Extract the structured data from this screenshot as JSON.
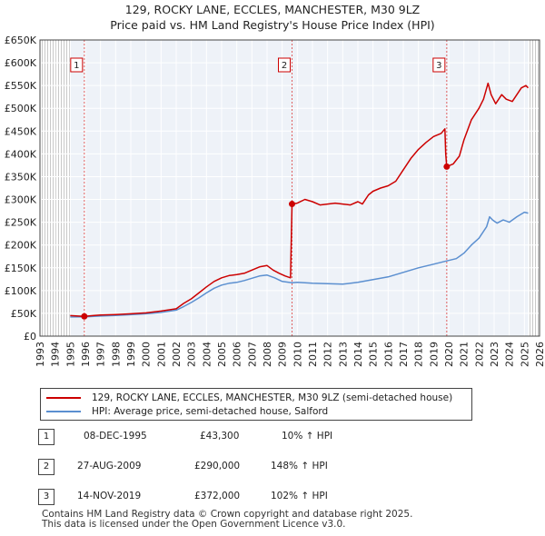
{
  "title_line1": "129, ROCKY LANE, ECCLES, MANCHESTER, M30 9LZ",
  "title_line2": "Price paid vs. HM Land Registry's House Price Index (HPI)",
  "chart_data": {
    "type": "line",
    "title": "129, ROCKY LANE, ECCLES, MANCHESTER, M30 9LZ — Price paid vs. HM Land Registry's House Price Index (HPI)",
    "xlabel": "",
    "ylabel": "",
    "xlim": [
      1993,
      2026
    ],
    "ylim": [
      0,
      650000
    ],
    "x_ticks": [
      1993,
      1994,
      1995,
      1996,
      1997,
      1998,
      1999,
      2000,
      2001,
      2002,
      2003,
      2004,
      2005,
      2006,
      2007,
      2008,
      2009,
      2010,
      2011,
      2012,
      2013,
      2014,
      2015,
      2016,
      2017,
      2018,
      2019,
      2020,
      2021,
      2022,
      2023,
      2024,
      2025,
      2026
    ],
    "y_ticks": [
      0,
      50000,
      100000,
      150000,
      200000,
      250000,
      300000,
      350000,
      400000,
      450000,
      500000,
      550000,
      600000,
      650000
    ],
    "y_tick_labels": [
      "£0",
      "£50K",
      "£100K",
      "£150K",
      "£200K",
      "£250K",
      "£300K",
      "£350K",
      "£400K",
      "£450K",
      "£500K",
      "£550K",
      "£600K",
      "£650K"
    ],
    "data_start": 1995.0,
    "data_end": 2025.25,
    "grid": true,
    "series": [
      {
        "name": "129, ROCKY LANE, ECCLES, MANCHESTER, M30 9LZ (semi-detached house)",
        "color": "#cc0000",
        "points": [
          [
            1995.0,
            45000
          ],
          [
            1995.5,
            44000
          ],
          [
            1995.93,
            43300
          ],
          [
            1996.5,
            45000
          ],
          [
            1997.0,
            46500
          ],
          [
            1998.0,
            47500
          ],
          [
            1999.0,
            49000
          ],
          [
            2000.0,
            51000
          ],
          [
            2001.0,
            55000
          ],
          [
            2002.0,
            60000
          ],
          [
            2002.5,
            72000
          ],
          [
            2003.0,
            82000
          ],
          [
            2003.5,
            95000
          ],
          [
            2004.0,
            108000
          ],
          [
            2004.5,
            120000
          ],
          [
            2005.0,
            128000
          ],
          [
            2005.5,
            133000
          ],
          [
            2006.0,
            135000
          ],
          [
            2006.5,
            138000
          ],
          [
            2007.0,
            145000
          ],
          [
            2007.5,
            152000
          ],
          [
            2008.0,
            155000
          ],
          [
            2008.4,
            145000
          ],
          [
            2008.8,
            138000
          ],
          [
            2009.2,
            132000
          ],
          [
            2009.55,
            128000
          ],
          [
            2009.65,
            290000
          ],
          [
            2010.0,
            292000
          ],
          [
            2010.5,
            300000
          ],
          [
            2011.0,
            295000
          ],
          [
            2011.5,
            288000
          ],
          [
            2012.0,
            290000
          ],
          [
            2012.5,
            292000
          ],
          [
            2013.0,
            290000
          ],
          [
            2013.5,
            288000
          ],
          [
            2014.0,
            295000
          ],
          [
            2014.3,
            290000
          ],
          [
            2014.7,
            310000
          ],
          [
            2015.0,
            318000
          ],
          [
            2015.5,
            325000
          ],
          [
            2016.0,
            330000
          ],
          [
            2016.5,
            340000
          ],
          [
            2017.0,
            365000
          ],
          [
            2017.5,
            390000
          ],
          [
            2018.0,
            410000
          ],
          [
            2018.5,
            425000
          ],
          [
            2019.0,
            438000
          ],
          [
            2019.5,
            445000
          ],
          [
            2019.75,
            455000
          ],
          [
            2019.8,
            400000
          ],
          [
            2019.87,
            372000
          ],
          [
            2020.3,
            378000
          ],
          [
            2020.7,
            395000
          ],
          [
            2021.0,
            430000
          ],
          [
            2021.5,
            475000
          ],
          [
            2022.0,
            500000
          ],
          [
            2022.3,
            520000
          ],
          [
            2022.6,
            555000
          ],
          [
            2022.8,
            530000
          ],
          [
            2023.1,
            510000
          ],
          [
            2023.5,
            530000
          ],
          [
            2023.8,
            520000
          ],
          [
            2024.2,
            515000
          ],
          [
            2024.5,
            530000
          ],
          [
            2024.8,
            545000
          ],
          [
            2025.1,
            550000
          ],
          [
            2025.25,
            545000
          ]
        ]
      },
      {
        "name": "HPI: Average price, semi-detached house, Salford",
        "color": "#5b8fd0",
        "points": [
          [
            1995.0,
            42000
          ],
          [
            1996.0,
            42500
          ],
          [
            1997.0,
            44000
          ],
          [
            1998.0,
            45500
          ],
          [
            1999.0,
            47000
          ],
          [
            2000.0,
            49000
          ],
          [
            2001.0,
            52000
          ],
          [
            2002.0,
            57000
          ],
          [
            2002.5,
            65000
          ],
          [
            2003.0,
            74000
          ],
          [
            2003.5,
            84000
          ],
          [
            2004.0,
            95000
          ],
          [
            2004.5,
            105000
          ],
          [
            2005.0,
            112000
          ],
          [
            2005.5,
            116000
          ],
          [
            2006.0,
            118000
          ],
          [
            2006.5,
            122000
          ],
          [
            2007.0,
            127000
          ],
          [
            2007.5,
            132000
          ],
          [
            2008.0,
            134000
          ],
          [
            2008.5,
            128000
          ],
          [
            2009.0,
            120000
          ],
          [
            2009.65,
            117000
          ],
          [
            2010.0,
            118000
          ],
          [
            2011.0,
            116000
          ],
          [
            2012.0,
            115000
          ],
          [
            2013.0,
            114000
          ],
          [
            2014.0,
            118000
          ],
          [
            2015.0,
            124000
          ],
          [
            2016.0,
            130000
          ],
          [
            2017.0,
            140000
          ],
          [
            2018.0,
            150000
          ],
          [
            2019.0,
            158000
          ],
          [
            2019.87,
            165000
          ],
          [
            2020.5,
            170000
          ],
          [
            2021.0,
            182000
          ],
          [
            2021.5,
            200000
          ],
          [
            2022.0,
            215000
          ],
          [
            2022.5,
            240000
          ],
          [
            2022.7,
            262000
          ],
          [
            2022.9,
            255000
          ],
          [
            2023.2,
            248000
          ],
          [
            2023.6,
            255000
          ],
          [
            2024.0,
            250000
          ],
          [
            2024.5,
            262000
          ],
          [
            2025.0,
            272000
          ],
          [
            2025.25,
            270000
          ]
        ]
      }
    ],
    "annotations": [
      {
        "label": "1",
        "x": 1995.93,
        "y": 43300
      },
      {
        "label": "2",
        "x": 2009.65,
        "y": 290000
      },
      {
        "label": "3",
        "x": 2019.87,
        "y": 372000
      }
    ]
  },
  "legend": {
    "items": [
      {
        "label": "129, ROCKY LANE, ECCLES, MANCHESTER, M30 9LZ (semi-detached house)",
        "color": "#cc0000"
      },
      {
        "label": "HPI: Average price, semi-detached house, Salford",
        "color": "#5b8fd0"
      }
    ]
  },
  "sales": [
    {
      "num": "1",
      "date": "08-DEC-1995",
      "price": "£43,300",
      "hpi": "10% ↑ HPI"
    },
    {
      "num": "2",
      "date": "27-AUG-2009",
      "price": "£290,000",
      "hpi": "148% ↑ HPI"
    },
    {
      "num": "3",
      "date": "14-NOV-2019",
      "price": "£372,000",
      "hpi": "102% ↑ HPI"
    }
  ],
  "footer_line1": "Contains HM Land Registry data © Crown copyright and database right 2025.",
  "footer_line2": "This data is licensed under the Open Government Licence v3.0."
}
